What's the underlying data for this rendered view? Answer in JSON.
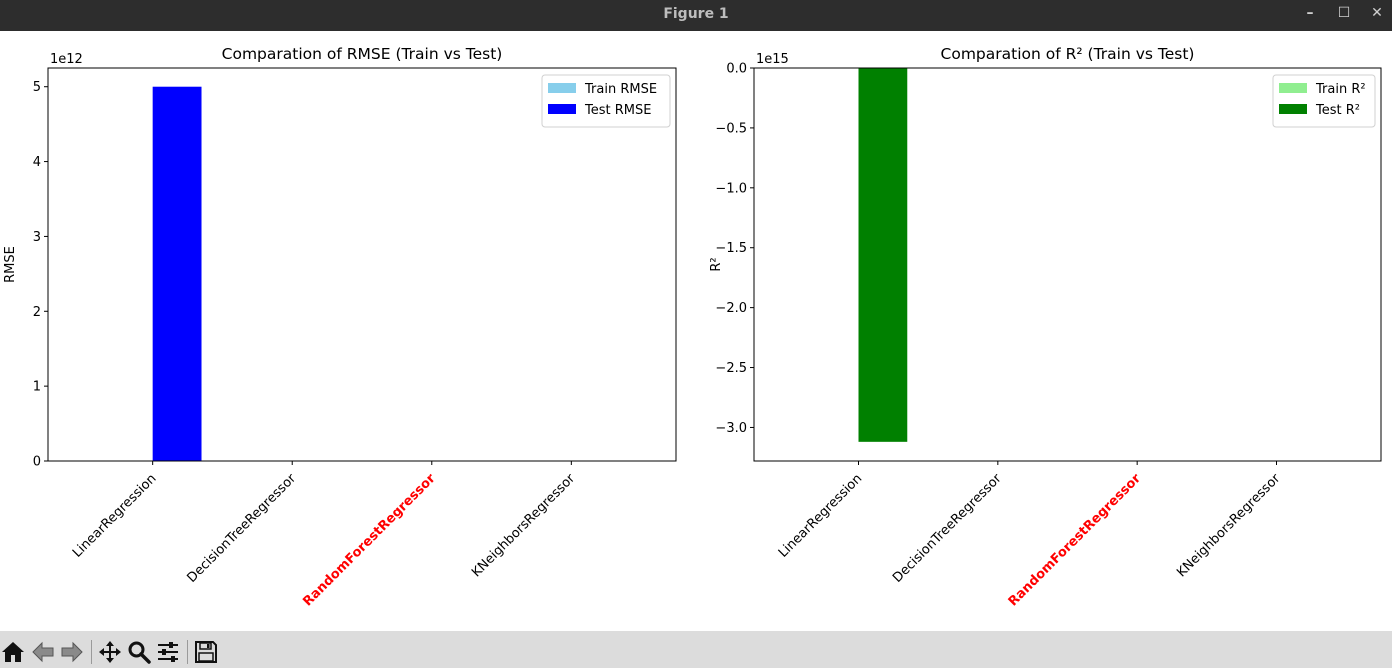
{
  "window": {
    "title": "Figure 1",
    "minimize_glyph": "–",
    "maximize_glyph": "☐",
    "close_glyph": "✕"
  },
  "toolbar": {
    "items": [
      {
        "name": "home-icon"
      },
      {
        "name": "back-arrow-icon"
      },
      {
        "name": "forward-arrow-icon"
      },
      {
        "name": "pan-icon"
      },
      {
        "name": "zoom-icon"
      },
      {
        "name": "configure-subplots-icon"
      },
      {
        "name": "save-icon"
      }
    ]
  },
  "colors": {
    "train_rmse": "#87ceeb",
    "test_rmse": "#0000ff",
    "train_r2": "#90ee90",
    "test_r2": "#008000",
    "highlight_label": "#ff0000"
  },
  "chart_data": [
    {
      "type": "bar",
      "title": "Comparation of RMSE (Train vs Test)",
      "xlabel": "",
      "ylabel": "RMSE",
      "offset_text": "1e12",
      "scale": 1000000000000.0,
      "categories": [
        "LinearRegression",
        "DecisionTreeRegressor",
        "RandomForestRegressor",
        "KNeighborsRegressor"
      ],
      "highlight_category": "RandomForestRegressor",
      "series": [
        {
          "name": "Train RMSE",
          "color": "#87ceeb",
          "values": [
            0,
            0,
            0,
            0
          ]
        },
        {
          "name": "Test RMSE",
          "color": "#0000ff",
          "values": [
            5000000000000.0,
            0,
            0,
            0
          ]
        }
      ],
      "ylim": [
        0,
        5250000000000.0
      ],
      "yticks": [
        0,
        1000000000000.0,
        2000000000000.0,
        3000000000000.0,
        4000000000000.0,
        5000000000000.0
      ],
      "ytick_labels": [
        "0",
        "1",
        "2",
        "3",
        "4",
        "5"
      ],
      "legend": "top-right",
      "grid": false
    },
    {
      "type": "bar",
      "title": "Comparation of R² (Train vs Test)",
      "xlabel": "",
      "ylabel": "R²",
      "offset_text": "1e15",
      "scale": 1000000000000000.0,
      "categories": [
        "LinearRegression",
        "DecisionTreeRegressor",
        "RandomForestRegressor",
        "KNeighborsRegressor"
      ],
      "highlight_category": "RandomForestRegressor",
      "series": [
        {
          "name": "Train R²",
          "color": "#90ee90",
          "values": [
            0,
            0,
            0,
            0
          ]
        },
        {
          "name": "Test R²",
          "color": "#008000",
          "values": [
            -3120000000000000.0,
            0,
            0,
            0
          ]
        }
      ],
      "ylim": [
        -3280000000000000.0,
        0
      ],
      "yticks": [
        0,
        -500000000000000.0,
        -1000000000000000.0,
        -1500000000000000.0,
        -2000000000000000.0,
        -2500000000000000.0,
        -3000000000000000.0
      ],
      "ytick_labels": [
        "0.0",
        "−0.5",
        "−1.0",
        "−1.5",
        "−2.0",
        "−2.5",
        "−3.0"
      ],
      "legend": "top-right",
      "grid": false
    }
  ]
}
